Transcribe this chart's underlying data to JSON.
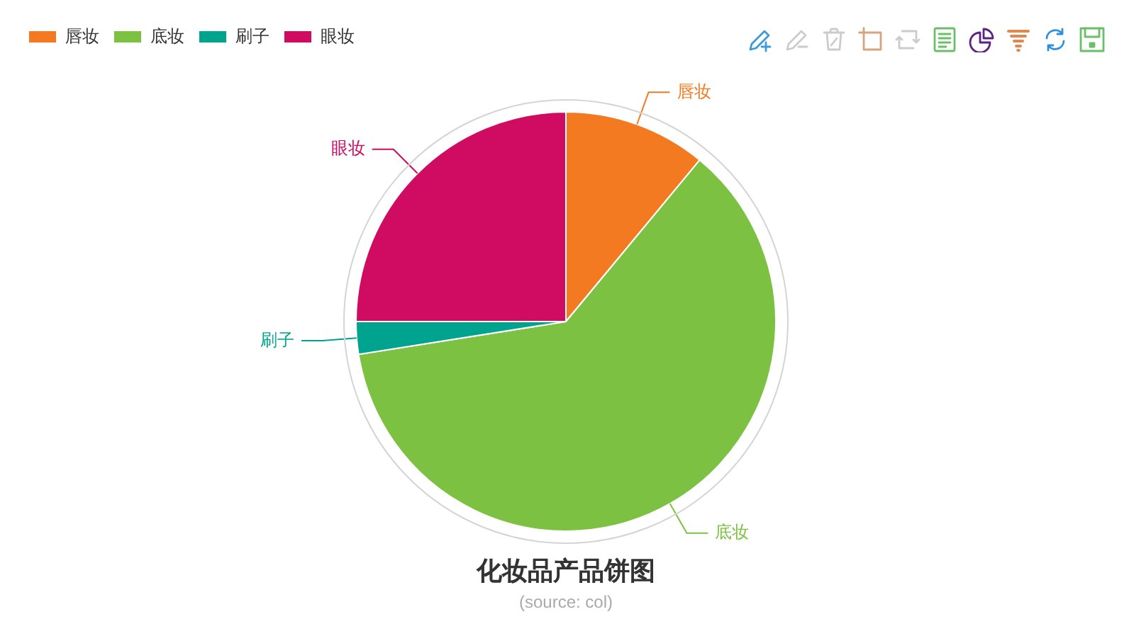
{
  "chart_data": {
    "type": "pie",
    "title": "化妆品产品饼图",
    "subtitle": "(source: col)",
    "categories": [
      "唇妆",
      "底妆",
      "刷子",
      "眼妆"
    ],
    "values": [
      11,
      61.5,
      2.5,
      25
    ],
    "colors": [
      "#f47a22",
      "#7cc142",
      "#00a38d",
      "#d00b62"
    ],
    "legend": "top left"
  }
}
